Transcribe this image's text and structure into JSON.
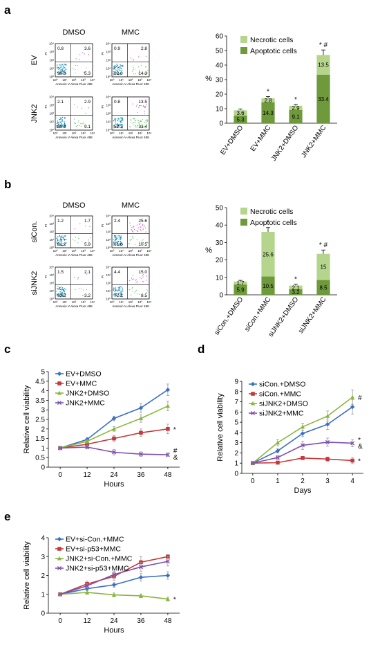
{
  "panel_letters": {
    "a": "a",
    "b": "b",
    "c": "c",
    "d": "d",
    "e": "e"
  },
  "flow_common": {
    "xaxis_label": "Annexin V-Alexa Fluor 488",
    "yaxis_label": "PI",
    "ytick_labels": [
      "10⁰",
      "10¹",
      "10²",
      "10³",
      "10⁴"
    ],
    "xtick_labels": [
      "10⁰",
      "10¹",
      "10²",
      "10³",
      "10⁴"
    ]
  },
  "flow_a": {
    "col_titles": [
      "DMSO",
      "MMC"
    ],
    "row_labels": [
      "EV",
      "JNK2"
    ],
    "plots": [
      {
        "ul": "0.8",
        "ur": "3.6",
        "ll": "90.3",
        "lr": "5.3"
      },
      {
        "ul": "0.9",
        "ur": "2.8",
        "ll": "82.0",
        "lr": "14.3"
      },
      {
        "ul": "2.1",
        "ur": "2.9",
        "ll": "85.9",
        "lr": "9.1"
      },
      {
        "ul": "0.8",
        "ur": "13.5",
        "ll": "52.3",
        "lr": "33.4"
      }
    ]
  },
  "flow_b": {
    "col_titles": [
      "DMSO",
      "MMC"
    ],
    "row_labels": [
      "siCon.",
      "siJNK2"
    ],
    "plots": [
      {
        "ul": "1.2",
        "ur": "1.7",
        "ll": "91.2",
        "lr": "5.9"
      },
      {
        "ul": "2.4",
        "ur": "25.6",
        "ll": "61.6",
        "lr": "10.5"
      },
      {
        "ul": "1.5",
        "ur": "2.1",
        "ll": "93.2",
        "lr": "3.2"
      },
      {
        "ul": "4.4",
        "ur": "15.0",
        "ll": "72.2",
        "lr": "8.5"
      }
    ]
  },
  "chart_data": [
    {
      "panel": "a",
      "type": "bar",
      "stacked": true,
      "categories": [
        "EV+DMSO",
        "EV+MMC",
        "JNK2+DMSO",
        "JNK2+MMC"
      ],
      "series": [
        {
          "name": "Apoptotic cells",
          "values": [
            5.3,
            14.3,
            9.1,
            33.4
          ],
          "color": "#6e9a3b"
        },
        {
          "name": "Necrotic cells",
          "values": [
            3.6,
            2.8,
            2.9,
            13.5
          ],
          "color": "#b5d58c"
        }
      ],
      "error": [
        0.8,
        1.2,
        0.9,
        3.5
      ],
      "significance": [
        "",
        "*",
        "*",
        "* #"
      ],
      "ylabel": "%",
      "ylim": [
        0,
        60
      ],
      "yticks": [
        0,
        10,
        20,
        30,
        40,
        50,
        60
      ],
      "legend": "top-center"
    },
    {
      "panel": "b",
      "type": "bar",
      "stacked": true,
      "categories": [
        "siCon.+DMSO",
        "siCon.+MMC",
        "siJNK2+DMSO",
        "siJNK2+MMC"
      ],
      "series": [
        {
          "name": "Apoptotic cells",
          "values": [
            5.9,
            10.5,
            3.2,
            8.5
          ],
          "color": "#6e9a3b"
        },
        {
          "name": "Necrotic cells",
          "values": [
            1.7,
            25.6,
            2.1,
            15.0
          ],
          "color": "#b5d58c"
        }
      ],
      "error": [
        0.7,
        2.5,
        0.8,
        2.2
      ],
      "significance": [
        "",
        "*",
        "*",
        "* #"
      ],
      "ylabel": "%",
      "ylim": [
        0,
        50
      ],
      "yticks": [
        0,
        10,
        20,
        30,
        40,
        50
      ],
      "legend": "top-center"
    },
    {
      "panel": "c",
      "type": "line",
      "x": [
        0,
        12,
        24,
        36,
        48
      ],
      "xlabel": "Hours",
      "ylabel": "Relative cell viability",
      "ylim": [
        0,
        5
      ],
      "yticks": [
        0,
        0.5,
        1,
        1.5,
        2,
        2.5,
        3,
        3.5,
        4,
        4.5,
        5
      ],
      "series": [
        {
          "name": "EV+DMSO",
          "values": [
            1.0,
            1.45,
            2.55,
            3.1,
            4.05
          ],
          "err": [
            0.05,
            0.1,
            0.12,
            0.25,
            0.3
          ],
          "color": "#3a6fc6",
          "marker": "diamond"
        },
        {
          "name": "EV+MMC",
          "values": [
            1.0,
            1.2,
            1.5,
            1.8,
            2.0
          ],
          "err": [
            0.05,
            0.1,
            0.15,
            0.2,
            0.25
          ],
          "color": "#c8383a",
          "marker": "square"
        },
        {
          "name": "JNK2+DMSO",
          "values": [
            1.0,
            1.35,
            2.0,
            2.55,
            3.2
          ],
          "err": [
            0.05,
            0.1,
            0.12,
            0.2,
            0.25
          ],
          "color": "#88b83a",
          "marker": "triangle"
        },
        {
          "name": "JNK2+MMC",
          "values": [
            1.0,
            1.05,
            0.78,
            0.68,
            0.65
          ],
          "err": [
            0.05,
            0.1,
            0.15,
            0.12,
            0.1
          ],
          "color": "#7e4fb0",
          "marker": "x"
        }
      ],
      "annotations": [
        {
          "text": "*",
          "x": 48,
          "y": 2.0
        },
        {
          "text": "#",
          "x": 48,
          "y": 0.88
        },
        {
          "text": "&",
          "x": 48,
          "y": 0.55
        }
      ],
      "legend": "top-left"
    },
    {
      "panel": "d",
      "type": "line",
      "x": [
        0,
        1,
        2,
        3,
        4
      ],
      "xlabel": "Days",
      "ylabel": "Relative cell viability",
      "ylim": [
        0,
        9
      ],
      "yticks": [
        0,
        1,
        2,
        3,
        4,
        5,
        6,
        7,
        8,
        9
      ],
      "series": [
        {
          "name": "siCon.+DMSO",
          "values": [
            1.0,
            2.2,
            3.9,
            4.8,
            6.5
          ],
          "err": [
            0.05,
            0.2,
            0.3,
            0.5,
            0.7
          ],
          "color": "#3a6fc6",
          "marker": "diamond"
        },
        {
          "name": "siCon.+MMC",
          "values": [
            1.0,
            1.05,
            1.5,
            1.4,
            1.25
          ],
          "err": [
            0.05,
            0.1,
            0.15,
            0.2,
            0.3
          ],
          "color": "#c8383a",
          "marker": "square"
        },
        {
          "name": "siJNK2+DMSO",
          "values": [
            1.0,
            3.0,
            4.55,
            5.6,
            7.45
          ],
          "err": [
            0.05,
            0.3,
            0.35,
            0.5,
            0.7
          ],
          "color": "#88b83a",
          "marker": "triangle"
        },
        {
          "name": "siJNK2+MMC",
          "values": [
            1.0,
            1.55,
            2.75,
            3.05,
            2.95
          ],
          "err": [
            0.05,
            0.2,
            0.4,
            0.4,
            0.35
          ],
          "color": "#7e4fb0",
          "marker": "x"
        }
      ],
      "annotations": [
        {
          "text": "#",
          "x": 4,
          "y": 7.45
        },
        {
          "text": "*",
          "x": 4,
          "y": 3.3
        },
        {
          "text": "&",
          "x": 4,
          "y": 2.7
        },
        {
          "text": "*",
          "x": 4,
          "y": 1.25
        }
      ],
      "legend": "top-left"
    },
    {
      "panel": "e",
      "type": "line",
      "x": [
        0,
        12,
        24,
        36,
        48
      ],
      "xlabel": "Hours",
      "ylabel": "Relative cell viability",
      "ylim": [
        0,
        4
      ],
      "yticks": [
        0,
        1,
        2,
        3,
        4
      ],
      "series": [
        {
          "name": "EV+si-Con.+MMC",
          "values": [
            1.0,
            1.3,
            1.5,
            1.9,
            2.0
          ],
          "err": [
            0.03,
            0.1,
            0.12,
            0.2,
            0.2
          ],
          "color": "#3a6fc6",
          "marker": "diamond"
        },
        {
          "name": "EV+si-p53+MMC",
          "values": [
            1.0,
            1.55,
            1.95,
            2.7,
            3.0
          ],
          "err": [
            0.03,
            0.15,
            0.2,
            0.3,
            0.1
          ],
          "color": "#c8383a",
          "marker": "square"
        },
        {
          "name": "JNK2+si-Con.+MMC",
          "values": [
            1.0,
            1.1,
            0.97,
            0.92,
            0.75
          ],
          "err": [
            0.03,
            0.1,
            0.1,
            0.1,
            0.1
          ],
          "color": "#88b83a",
          "marker": "triangle"
        },
        {
          "name": "JNK2+si-p53+MMC",
          "values": [
            1.0,
            1.45,
            2.05,
            2.45,
            2.75
          ],
          "err": [
            0.03,
            0.12,
            0.18,
            0.25,
            0.25
          ],
          "color": "#7e4fb0",
          "marker": "x"
        }
      ],
      "annotations": [
        {
          "text": "*",
          "x": 48,
          "y": 0.75
        }
      ],
      "legend": "top-left"
    }
  ]
}
